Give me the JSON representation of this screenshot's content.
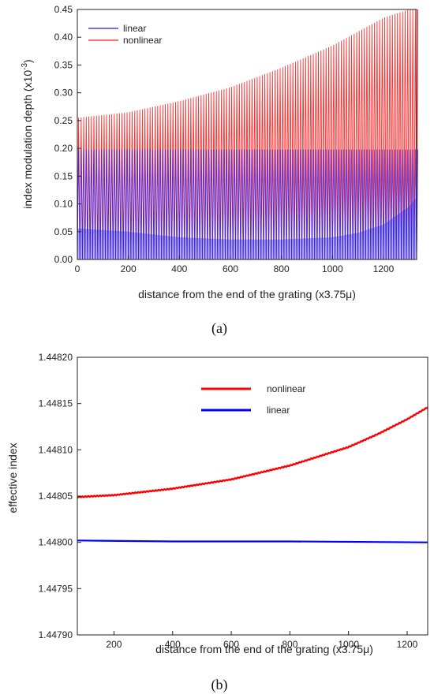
{
  "chart_data": [
    {
      "panel": "(a)",
      "type": "line",
      "xlabel": "distance from the end of the grating (x3.75μ)",
      "ylabel": "index modulation depth (x10",
      "ylabel_exp": "-3",
      "ylabel_close": ")",
      "xlim": [
        0,
        1330
      ],
      "ylim": [
        0,
        0.45
      ],
      "xticks": [
        "0",
        "200",
        "400",
        "600",
        "800",
        "1000",
        "1200"
      ],
      "yticks": [
        "0.00",
        "0.05",
        "0.10",
        "0.15",
        "0.20",
        "0.25",
        "0.30",
        "0.35",
        "0.40",
        "0.45"
      ],
      "legend_position": "top-left",
      "grid": false,
      "series": [
        {
          "name": "linear",
          "color": "#1a1aff",
          "oscillation": {
            "min": 0.0,
            "max": 0.198,
            "period": 10
          },
          "envelope_min_x": [
            0,
            200,
            400,
            600,
            800,
            1000,
            1100,
            1200,
            1300,
            1330
          ],
          "envelope_min_y": [
            0.056,
            0.05,
            0.04,
            0.036,
            0.036,
            0.04,
            0.048,
            0.063,
            0.095,
            0.112
          ]
        },
        {
          "name": "nonlinear",
          "color": "#ff1a1a",
          "oscillation": {
            "min": 0.0,
            "max_from": "envelope",
            "period": 10
          },
          "envelope_max_x": [
            0,
            200,
            400,
            600,
            800,
            1000,
            1100,
            1200,
            1300,
            1330
          ],
          "envelope_max_y": [
            0.255,
            0.265,
            0.285,
            0.31,
            0.345,
            0.385,
            0.41,
            0.435,
            0.45,
            0.45
          ],
          "envelope_min_x": [
            0,
            400,
            800,
            1000,
            1200,
            1300,
            1330
          ],
          "envelope_min_y": [
            0.12,
            0.112,
            0.112,
            0.115,
            0.125,
            0.13,
            0.13
          ]
        }
      ]
    },
    {
      "panel": "(b)",
      "type": "line",
      "xlabel": "distance from the end of the grating (x3.75μ)",
      "ylabel": "effective index",
      "xlim": [
        75,
        1270
      ],
      "ylim": [
        1.4479,
        1.4482
      ],
      "xticks": [
        "200",
        "400",
        "600",
        "800",
        "1000",
        "1200"
      ],
      "yticks": [
        "1.44790",
        "1.44795",
        "1.44800",
        "1.44805",
        "1.44810",
        "1.44815",
        "1.44820"
      ],
      "legend_position": "top-right",
      "grid": false,
      "series": [
        {
          "name": "nonlinear",
          "color": "#ff0000",
          "x": [
            75,
            200,
            400,
            600,
            800,
            1000,
            1100,
            1200,
            1270
          ],
          "y": [
            1.448049,
            1.448051,
            1.448058,
            1.448068,
            1.448083,
            1.448103,
            1.448117,
            1.448133,
            1.448146
          ],
          "ripple_amplitude": 4e-07,
          "ripple_period": 10
        },
        {
          "name": "linear",
          "color": "#0000ff",
          "x": [
            75,
            400,
            800,
            1270
          ],
          "y": [
            1.448002,
            1.448001,
            1.448001,
            1.448
          ]
        }
      ]
    }
  ]
}
